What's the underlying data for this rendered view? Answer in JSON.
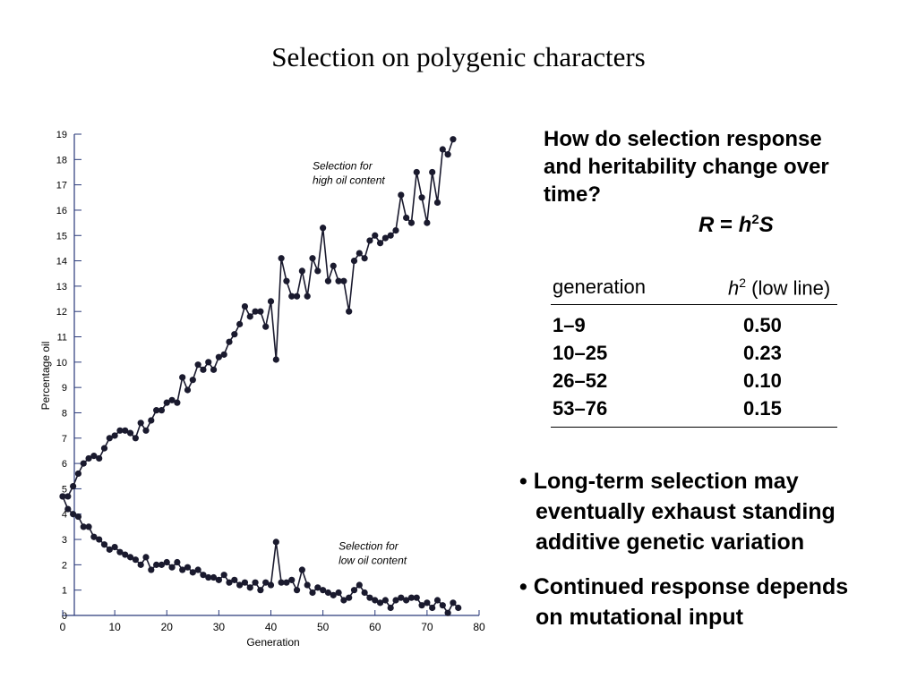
{
  "title": "Selection on polygenic characters",
  "question": [
    "How do selection response",
    "and heritability change over",
    "time?"
  ],
  "formula": {
    "r": "R",
    "eq": " = ",
    "h": "h",
    "sup": "2",
    "s": "S"
  },
  "table": {
    "header": {
      "generation": "generation",
      "h": "h",
      "sup": "2",
      "rest": " (low line)"
    },
    "rows": [
      [
        "1–9",
        "0.50"
      ],
      [
        "10–25",
        "0.23"
      ],
      [
        "26–52",
        "0.10"
      ],
      [
        "53–76",
        "0.15"
      ]
    ]
  },
  "bullets": [
    [
      "Long-term selection may",
      "eventually exhaust standing",
      "additive genetic variation"
    ],
    [
      "Continued response depends",
      "on mutational input"
    ]
  ],
  "chart_data": {
    "type": "line",
    "x_label": "Generation",
    "y_label": "Percentage oil",
    "xlim": [
      0,
      80
    ],
    "xticks": [
      0,
      10,
      20,
      30,
      40,
      50,
      60,
      70,
      80
    ],
    "ylim": [
      0,
      19
    ],
    "yticks": [
      0,
      1,
      2,
      3,
      4,
      5,
      6,
      7,
      8,
      9,
      10,
      11,
      12,
      13,
      14,
      15,
      16,
      17,
      18,
      19
    ],
    "annotations": [
      {
        "lines": [
          "Selection for",
          "high oil content"
        ],
        "x": 48,
        "y": 17.6
      },
      {
        "lines": [
          "Selection for",
          "low oil content"
        ],
        "x": 53,
        "y": 2.6
      }
    ],
    "series": [
      {
        "name": "high",
        "color": "#1a1a2e",
        "x": [
          0,
          1,
          2,
          3,
          4,
          5,
          6,
          7,
          8,
          9,
          10,
          11,
          12,
          13,
          14,
          15,
          16,
          17,
          18,
          19,
          20,
          21,
          22,
          23,
          24,
          25,
          26,
          27,
          28,
          29,
          30,
          31,
          32,
          33,
          34,
          35,
          36,
          37,
          38,
          39,
          40,
          41,
          42,
          43,
          44,
          45,
          46,
          47,
          48,
          49,
          50,
          51,
          52,
          53,
          54,
          55,
          56,
          57,
          58,
          59,
          60,
          61,
          62,
          63,
          64,
          65,
          66,
          67,
          68,
          69,
          70,
          71,
          72,
          73,
          74,
          75
        ],
        "values": [
          4.7,
          4.7,
          5.1,
          5.6,
          6.0,
          6.2,
          6.3,
          6.2,
          6.6,
          7.0,
          7.1,
          7.3,
          7.3,
          7.2,
          7.0,
          7.6,
          7.3,
          7.7,
          8.1,
          8.1,
          8.4,
          8.5,
          8.4,
          9.4,
          8.9,
          9.3,
          9.9,
          9.7,
          10.0,
          9.7,
          10.2,
          10.3,
          10.8,
          11.1,
          11.5,
          12.2,
          11.8,
          12.0,
          12.0,
          11.4,
          12.4,
          10.1,
          14.1,
          13.2,
          12.6,
          12.6,
          13.6,
          12.6,
          14.1,
          13.6,
          15.3,
          13.2,
          13.8,
          13.2,
          13.2,
          12.0,
          14.0,
          14.3,
          14.1,
          14.8,
          15.0,
          14.7,
          14.9,
          15.0,
          15.2,
          16.6,
          15.7,
          15.5,
          17.5,
          16.5,
          15.5,
          17.5,
          16.3,
          18.4,
          18.2,
          18.8
        ]
      },
      {
        "name": "low",
        "color": "#1a1a2e",
        "x": [
          0,
          1,
          2,
          3,
          4,
          5,
          6,
          7,
          8,
          9,
          10,
          11,
          12,
          13,
          14,
          15,
          16,
          17,
          18,
          19,
          20,
          21,
          22,
          23,
          24,
          25,
          26,
          27,
          28,
          29,
          30,
          31,
          32,
          33,
          34,
          35,
          36,
          37,
          38,
          39,
          40,
          41,
          42,
          43,
          44,
          45,
          46,
          47,
          48,
          49,
          50,
          51,
          52,
          53,
          54,
          55,
          56,
          57,
          58,
          59,
          60,
          61,
          62,
          63,
          64,
          65,
          66,
          67,
          68,
          69,
          70,
          71,
          72,
          73,
          74,
          75,
          76
        ],
        "values": [
          4.7,
          4.2,
          4.0,
          3.9,
          3.5,
          3.5,
          3.1,
          3.0,
          2.8,
          2.6,
          2.7,
          2.5,
          2.4,
          2.3,
          2.2,
          2.0,
          2.3,
          1.8,
          2.0,
          2.0,
          2.1,
          1.9,
          2.1,
          1.8,
          1.9,
          1.7,
          1.8,
          1.6,
          1.5,
          1.5,
          1.4,
          1.6,
          1.3,
          1.4,
          1.2,
          1.3,
          1.1,
          1.3,
          1.0,
          1.3,
          1.2,
          2.9,
          1.3,
          1.3,
          1.4,
          1.0,
          1.8,
          1.2,
          0.9,
          1.1,
          1.0,
          0.9,
          0.8,
          0.9,
          0.6,
          0.7,
          1.0,
          1.2,
          0.9,
          0.7,
          0.6,
          0.5,
          0.6,
          0.3,
          0.6,
          0.7,
          0.6,
          0.7,
          0.7,
          0.4,
          0.5,
          0.3,
          0.6,
          0.4,
          0.1,
          0.5,
          0.3
        ]
      }
    ]
  }
}
